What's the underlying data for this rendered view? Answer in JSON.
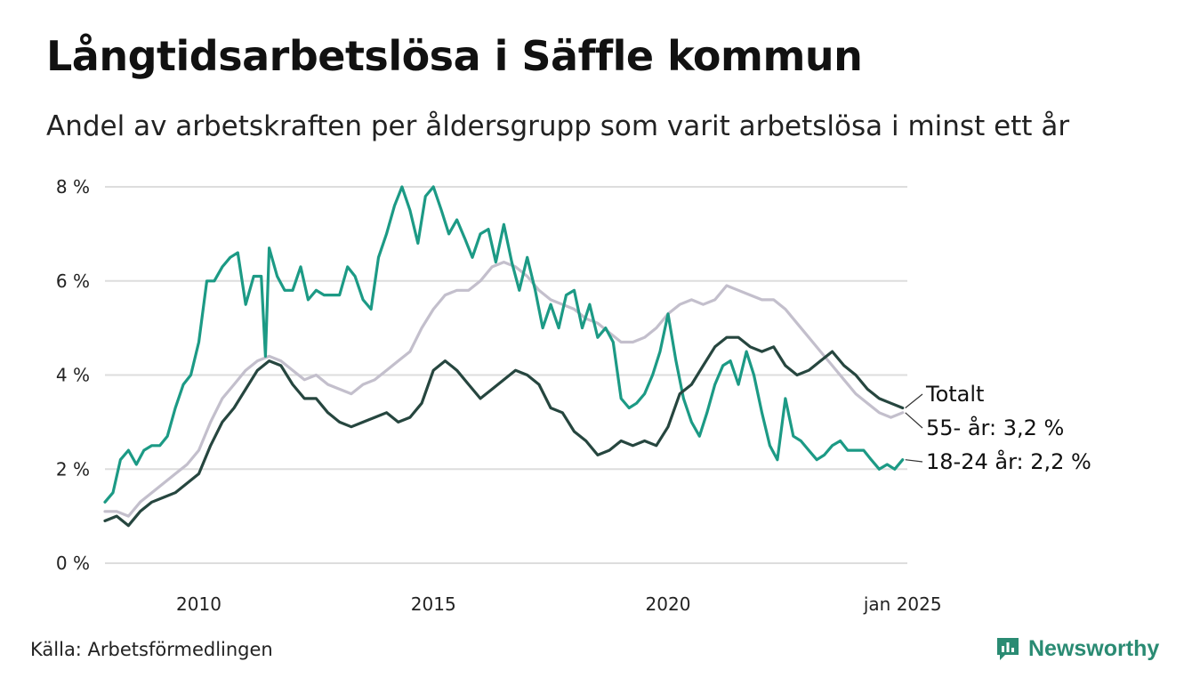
{
  "title": "Långtidsarbetslösa i Säffle kommun",
  "subtitle": "Andel av arbetskraften per åldersgrupp som varit arbetslösa i minst ett år",
  "source": "Källa: Arbetsförmedlingen",
  "brand": "Newsworthy",
  "colors": {
    "totalt": "#26463f",
    "age55": "#c3bfcc",
    "age18_24": "#1c9a85",
    "grid": "#dddddd",
    "brand": "#2a8b73"
  },
  "chart_data": {
    "type": "line",
    "title": "Långtidsarbetslösa i Säffle kommun",
    "xlabel": "",
    "ylabel": "",
    "xlim": [
      2008.0,
      2025.1
    ],
    "ylim": [
      0,
      8
    ],
    "yticks": [
      0,
      2,
      4,
      6,
      8
    ],
    "ytick_labels": [
      "0 %",
      "2 %",
      "4 %",
      "6 %",
      "8 %"
    ],
    "xticks": [
      2010,
      2015,
      2020,
      2025.0
    ],
    "xtick_labels": [
      "2010",
      "2015",
      "2020",
      "jan 2025"
    ],
    "grid": true,
    "series": [
      {
        "name": "55- år",
        "label": "55- år: 3,2 %",
        "color_key": "age55",
        "points": [
          [
            2008.0,
            1.1
          ],
          [
            2008.25,
            1.1
          ],
          [
            2008.5,
            1.0
          ],
          [
            2008.75,
            1.3
          ],
          [
            2009.0,
            1.5
          ],
          [
            2009.25,
            1.7
          ],
          [
            2009.5,
            1.9
          ],
          [
            2009.75,
            2.1
          ],
          [
            2010.0,
            2.4
          ],
          [
            2010.25,
            3.0
          ],
          [
            2010.5,
            3.5
          ],
          [
            2010.75,
            3.8
          ],
          [
            2011.0,
            4.1
          ],
          [
            2011.25,
            4.3
          ],
          [
            2011.5,
            4.4
          ],
          [
            2011.75,
            4.3
          ],
          [
            2012.0,
            4.1
          ],
          [
            2012.25,
            3.9
          ],
          [
            2012.5,
            4.0
          ],
          [
            2012.75,
            3.8
          ],
          [
            2013.0,
            3.7
          ],
          [
            2013.25,
            3.6
          ],
          [
            2013.5,
            3.8
          ],
          [
            2013.75,
            3.9
          ],
          [
            2014.0,
            4.1
          ],
          [
            2014.25,
            4.3
          ],
          [
            2014.5,
            4.5
          ],
          [
            2014.75,
            5.0
          ],
          [
            2015.0,
            5.4
          ],
          [
            2015.25,
            5.7
          ],
          [
            2015.5,
            5.8
          ],
          [
            2015.75,
            5.8
          ],
          [
            2016.0,
            6.0
          ],
          [
            2016.25,
            6.3
          ],
          [
            2016.5,
            6.4
          ],
          [
            2016.75,
            6.3
          ],
          [
            2017.0,
            6.1
          ],
          [
            2017.25,
            5.8
          ],
          [
            2017.5,
            5.6
          ],
          [
            2017.75,
            5.5
          ],
          [
            2018.0,
            5.4
          ],
          [
            2018.25,
            5.2
          ],
          [
            2018.5,
            5.1
          ],
          [
            2018.75,
            4.9
          ],
          [
            2019.0,
            4.7
          ],
          [
            2019.25,
            4.7
          ],
          [
            2019.5,
            4.8
          ],
          [
            2019.75,
            5.0
          ],
          [
            2020.0,
            5.3
          ],
          [
            2020.25,
            5.5
          ],
          [
            2020.5,
            5.6
          ],
          [
            2020.75,
            5.5
          ],
          [
            2021.0,
            5.6
          ],
          [
            2021.25,
            5.9
          ],
          [
            2021.5,
            5.8
          ],
          [
            2021.75,
            5.7
          ],
          [
            2022.0,
            5.6
          ],
          [
            2022.25,
            5.6
          ],
          [
            2022.5,
            5.4
          ],
          [
            2022.75,
            5.1
          ],
          [
            2023.0,
            4.8
          ],
          [
            2023.25,
            4.5
          ],
          [
            2023.5,
            4.2
          ],
          [
            2023.75,
            3.9
          ],
          [
            2024.0,
            3.6
          ],
          [
            2024.25,
            3.4
          ],
          [
            2024.5,
            3.2
          ],
          [
            2024.75,
            3.1
          ],
          [
            2025.0,
            3.2
          ]
        ]
      },
      {
        "name": "18-24 år",
        "label": "18-24 år: 2,2 %",
        "color_key": "age18_24",
        "points": [
          [
            2008.0,
            1.3
          ],
          [
            2008.17,
            1.5
          ],
          [
            2008.33,
            2.2
          ],
          [
            2008.5,
            2.4
          ],
          [
            2008.67,
            2.1
          ],
          [
            2008.83,
            2.4
          ],
          [
            2009.0,
            2.5
          ],
          [
            2009.17,
            2.5
          ],
          [
            2009.33,
            2.7
          ],
          [
            2009.5,
            3.3
          ],
          [
            2009.67,
            3.8
          ],
          [
            2009.83,
            4.0
          ],
          [
            2010.0,
            4.7
          ],
          [
            2010.17,
            6.0
          ],
          [
            2010.33,
            6.0
          ],
          [
            2010.5,
            6.3
          ],
          [
            2010.67,
            6.5
          ],
          [
            2010.83,
            6.6
          ],
          [
            2011.0,
            5.5
          ],
          [
            2011.17,
            6.1
          ],
          [
            2011.33,
            6.1
          ],
          [
            2011.42,
            4.4
          ],
          [
            2011.5,
            6.7
          ],
          [
            2011.67,
            6.1
          ],
          [
            2011.83,
            5.8
          ],
          [
            2012.0,
            5.8
          ],
          [
            2012.17,
            6.3
          ],
          [
            2012.33,
            5.6
          ],
          [
            2012.5,
            5.8
          ],
          [
            2012.67,
            5.7
          ],
          [
            2012.83,
            5.7
          ],
          [
            2013.0,
            5.7
          ],
          [
            2013.17,
            6.3
          ],
          [
            2013.33,
            6.1
          ],
          [
            2013.5,
            5.6
          ],
          [
            2013.67,
            5.4
          ],
          [
            2013.83,
            6.5
          ],
          [
            2014.0,
            7.0
          ],
          [
            2014.17,
            7.6
          ],
          [
            2014.33,
            8.0
          ],
          [
            2014.5,
            7.5
          ],
          [
            2014.67,
            6.8
          ],
          [
            2014.83,
            7.8
          ],
          [
            2015.0,
            8.0
          ],
          [
            2015.17,
            7.5
          ],
          [
            2015.33,
            7.0
          ],
          [
            2015.5,
            7.3
          ],
          [
            2015.67,
            6.9
          ],
          [
            2015.83,
            6.5
          ],
          [
            2016.0,
            7.0
          ],
          [
            2016.17,
            7.1
          ],
          [
            2016.33,
            6.4
          ],
          [
            2016.5,
            7.2
          ],
          [
            2016.67,
            6.4
          ],
          [
            2016.83,
            5.8
          ],
          [
            2017.0,
            6.5
          ],
          [
            2017.17,
            5.8
          ],
          [
            2017.33,
            5.0
          ],
          [
            2017.5,
            5.5
          ],
          [
            2017.67,
            5.0
          ],
          [
            2017.83,
            5.7
          ],
          [
            2018.0,
            5.8
          ],
          [
            2018.17,
            5.0
          ],
          [
            2018.33,
            5.5
          ],
          [
            2018.5,
            4.8
          ],
          [
            2018.67,
            5.0
          ],
          [
            2018.83,
            4.7
          ],
          [
            2019.0,
            3.5
          ],
          [
            2019.17,
            3.3
          ],
          [
            2019.33,
            3.4
          ],
          [
            2019.5,
            3.6
          ],
          [
            2019.67,
            4.0
          ],
          [
            2019.83,
            4.5
          ],
          [
            2020.0,
            5.3
          ],
          [
            2020.17,
            4.3
          ],
          [
            2020.33,
            3.5
          ],
          [
            2020.5,
            3.0
          ],
          [
            2020.67,
            2.7
          ],
          [
            2020.83,
            3.2
          ],
          [
            2021.0,
            3.8
          ],
          [
            2021.17,
            4.2
          ],
          [
            2021.33,
            4.3
          ],
          [
            2021.5,
            3.8
          ],
          [
            2021.67,
            4.5
          ],
          [
            2021.83,
            4.0
          ],
          [
            2022.0,
            3.2
          ],
          [
            2022.17,
            2.5
          ],
          [
            2022.33,
            2.2
          ],
          [
            2022.5,
            3.5
          ],
          [
            2022.67,
            2.7
          ],
          [
            2022.83,
            2.6
          ],
          [
            2023.0,
            2.4
          ],
          [
            2023.17,
            2.2
          ],
          [
            2023.33,
            2.3
          ],
          [
            2023.5,
            2.5
          ],
          [
            2023.67,
            2.6
          ],
          [
            2023.83,
            2.4
          ],
          [
            2024.0,
            2.4
          ],
          [
            2024.17,
            2.4
          ],
          [
            2024.33,
            2.2
          ],
          [
            2024.5,
            2.0
          ],
          [
            2024.67,
            2.1
          ],
          [
            2024.83,
            2.0
          ],
          [
            2025.0,
            2.2
          ]
        ]
      },
      {
        "name": "Totalt",
        "label": "Totalt",
        "color_key": "totalt",
        "points": [
          [
            2008.0,
            0.9
          ],
          [
            2008.25,
            1.0
          ],
          [
            2008.5,
            0.8
          ],
          [
            2008.75,
            1.1
          ],
          [
            2009.0,
            1.3
          ],
          [
            2009.25,
            1.4
          ],
          [
            2009.5,
            1.5
          ],
          [
            2009.75,
            1.7
          ],
          [
            2010.0,
            1.9
          ],
          [
            2010.25,
            2.5
          ],
          [
            2010.5,
            3.0
          ],
          [
            2010.75,
            3.3
          ],
          [
            2011.0,
            3.7
          ],
          [
            2011.25,
            4.1
          ],
          [
            2011.5,
            4.3
          ],
          [
            2011.75,
            4.2
          ],
          [
            2012.0,
            3.8
          ],
          [
            2012.25,
            3.5
          ],
          [
            2012.5,
            3.5
          ],
          [
            2012.75,
            3.2
          ],
          [
            2013.0,
            3.0
          ],
          [
            2013.25,
            2.9
          ],
          [
            2013.5,
            3.0
          ],
          [
            2013.75,
            3.1
          ],
          [
            2014.0,
            3.2
          ],
          [
            2014.25,
            3.0
          ],
          [
            2014.5,
            3.1
          ],
          [
            2014.75,
            3.4
          ],
          [
            2015.0,
            4.1
          ],
          [
            2015.25,
            4.3
          ],
          [
            2015.5,
            4.1
          ],
          [
            2015.75,
            3.8
          ],
          [
            2016.0,
            3.5
          ],
          [
            2016.25,
            3.7
          ],
          [
            2016.5,
            3.9
          ],
          [
            2016.75,
            4.1
          ],
          [
            2017.0,
            4.0
          ],
          [
            2017.25,
            3.8
          ],
          [
            2017.5,
            3.3
          ],
          [
            2017.75,
            3.2
          ],
          [
            2018.0,
            2.8
          ],
          [
            2018.25,
            2.6
          ],
          [
            2018.5,
            2.3
          ],
          [
            2018.75,
            2.4
          ],
          [
            2019.0,
            2.6
          ],
          [
            2019.25,
            2.5
          ],
          [
            2019.5,
            2.6
          ],
          [
            2019.75,
            2.5
          ],
          [
            2020.0,
            2.9
          ],
          [
            2020.25,
            3.6
          ],
          [
            2020.5,
            3.8
          ],
          [
            2020.75,
            4.2
          ],
          [
            2021.0,
            4.6
          ],
          [
            2021.25,
            4.8
          ],
          [
            2021.5,
            4.8
          ],
          [
            2021.75,
            4.6
          ],
          [
            2022.0,
            4.5
          ],
          [
            2022.25,
            4.6
          ],
          [
            2022.5,
            4.2
          ],
          [
            2022.75,
            4.0
          ],
          [
            2023.0,
            4.1
          ],
          [
            2023.25,
            4.3
          ],
          [
            2023.5,
            4.5
          ],
          [
            2023.75,
            4.2
          ],
          [
            2024.0,
            4.0
          ],
          [
            2024.25,
            3.7
          ],
          [
            2024.5,
            3.5
          ],
          [
            2024.75,
            3.4
          ],
          [
            2025.0,
            3.3
          ]
        ]
      }
    ]
  }
}
